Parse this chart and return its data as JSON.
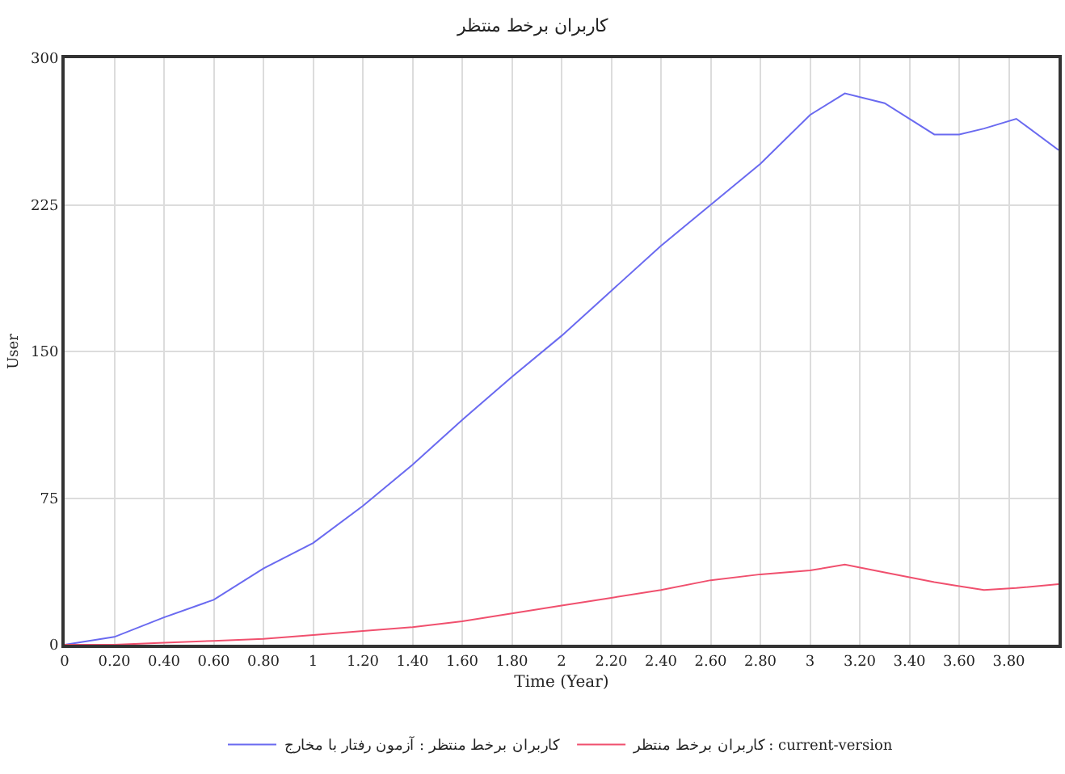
{
  "chart_data": {
    "type": "line",
    "title": "کاربران برخط منتظر",
    "xlabel": "Time (Year)",
    "ylabel": "User",
    "x": [
      0,
      0.2,
      0.4,
      0.6,
      0.8,
      1,
      1.2,
      1.4,
      1.6,
      1.8,
      2,
      2.2,
      2.4,
      2.6,
      2.8,
      3,
      3.14,
      3.3,
      3.5,
      3.6,
      3.7,
      3.83,
      4
    ],
    "series": [
      {
        "name": "کاربران برخط منتظر : آزمون رفتار با مخارج",
        "color": "#6a6af0",
        "values": [
          0,
          4,
          14,
          23,
          39,
          52,
          71,
          92,
          115,
          137,
          158,
          181,
          204,
          225,
          246,
          271,
          282,
          277,
          261,
          261,
          264,
          269,
          253
        ]
      },
      {
        "name": "کاربران برخط منتظر : current-version",
        "color": "#f0506e",
        "values": [
          0,
          0,
          1,
          2,
          3,
          5,
          7,
          9,
          12,
          16,
          20,
          24,
          28,
          33,
          36,
          38,
          41,
          37,
          32,
          30,
          28,
          29,
          31
        ]
      }
    ],
    "xlim": [
      0,
      4
    ],
    "ylim": [
      0,
      300
    ],
    "xticks": [
      0,
      {
        "value": 0.2,
        "label": "0.20"
      },
      {
        "value": 0.4,
        "label": "0.40"
      },
      {
        "value": 0.6,
        "label": "0.60"
      },
      {
        "value": 0.8,
        "label": "0.80"
      },
      1,
      {
        "value": 1.2,
        "label": "1.20"
      },
      {
        "value": 1.4,
        "label": "1.40"
      },
      {
        "value": 1.6,
        "label": "1.60"
      },
      {
        "value": 1.8,
        "label": "1.80"
      },
      2,
      {
        "value": 2.2,
        "label": "2.20"
      },
      {
        "value": 2.4,
        "label": "2.40"
      },
      {
        "value": 2.6,
        "label": "2.60"
      },
      {
        "value": 2.8,
        "label": "2.80"
      },
      3,
      {
        "value": 3.2,
        "label": "3.20"
      },
      {
        "value": 3.4,
        "label": "3.40"
      },
      {
        "value": 3.6,
        "label": "3.60"
      },
      {
        "value": 3.8,
        "label": "3.80"
      }
    ],
    "yticks": [
      0,
      75,
      150,
      225,
      300
    ],
    "grid": true,
    "legend": "bottom",
    "marker": "none",
    "line_style": "solid"
  }
}
